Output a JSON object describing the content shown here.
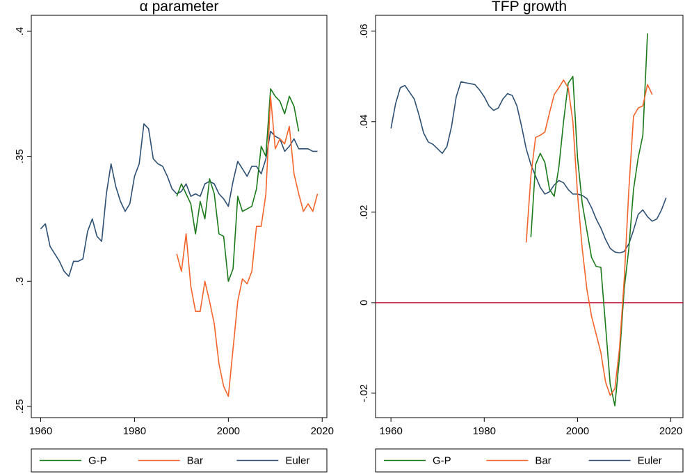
{
  "chart_data": [
    {
      "type": "line",
      "title": "α parameter",
      "x": [
        1960,
        1961,
        1962,
        1963,
        1964,
        1965,
        1966,
        1967,
        1968,
        1969,
        1970,
        1971,
        1972,
        1973,
        1974,
        1975,
        1976,
        1977,
        1978,
        1979,
        1980,
        1981,
        1982,
        1983,
        1984,
        1985,
        1986,
        1987,
        1988,
        1989,
        1990,
        1991,
        1992,
        1993,
        1994,
        1995,
        1996,
        1997,
        1998,
        1999,
        2000,
        2001,
        2002,
        2003,
        2004,
        2005,
        2006,
        2007,
        2008,
        2009,
        2010,
        2011,
        2012,
        2013,
        2014,
        2015,
        2016,
        2017,
        2018,
        2019
      ],
      "xlim": [
        1958,
        2021
      ],
      "xticks": [
        1960,
        1980,
        2000,
        2020
      ],
      "ylim": [
        0.2455,
        0.4064
      ],
      "yticks": [
        {
          "value": 0.25,
          "label": ".25"
        },
        {
          "value": 0.3,
          "label": ".3"
        },
        {
          "value": 0.35,
          "label": ".35"
        },
        {
          "value": 0.4,
          "label": ".4"
        }
      ],
      "legend": "bottom",
      "series": [
        {
          "name": "G-P",
          "color": "#1a7a1a",
          "values": [
            null,
            null,
            null,
            null,
            null,
            null,
            null,
            null,
            null,
            null,
            null,
            null,
            null,
            null,
            null,
            null,
            null,
            null,
            null,
            null,
            null,
            null,
            null,
            null,
            null,
            null,
            null,
            null,
            null,
            0.334,
            0.339,
            0.335,
            0.331,
            0.319,
            0.332,
            0.325,
            0.341,
            0.335,
            0.319,
            0.318,
            0.3,
            0.305,
            0.334,
            0.328,
            0.329,
            0.33,
            0.337,
            0.354,
            0.35,
            0.377,
            0.374,
            0.372,
            0.367,
            0.374,
            0.37,
            0.36,
            null,
            null,
            null,
            null
          ]
        },
        {
          "name": "Bar",
          "color": "#f4632a",
          "values": [
            null,
            null,
            null,
            null,
            null,
            null,
            null,
            null,
            null,
            null,
            null,
            null,
            null,
            null,
            null,
            null,
            null,
            null,
            null,
            null,
            null,
            null,
            null,
            null,
            null,
            null,
            null,
            null,
            null,
            0.311,
            0.304,
            0.319,
            0.298,
            0.288,
            0.288,
            0.3,
            0.292,
            0.283,
            0.267,
            0.258,
            0.254,
            0.273,
            0.292,
            0.301,
            0.299,
            0.304,
            0.322,
            0.322,
            0.335,
            0.374,
            0.353,
            0.357,
            0.355,
            0.362,
            0.343,
            0.335,
            0.328,
            0.331,
            0.328,
            0.335
          ]
        },
        {
          "name": "Euler",
          "color": "#2c4f73",
          "values": [
            0.321,
            0.323,
            0.314,
            0.311,
            0.308,
            0.304,
            0.302,
            0.308,
            0.308,
            0.309,
            0.32,
            0.325,
            0.318,
            0.316,
            0.335,
            0.347,
            0.338,
            0.332,
            0.328,
            0.331,
            0.342,
            0.347,
            0.363,
            0.361,
            0.349,
            0.347,
            0.346,
            0.342,
            0.337,
            0.335,
            0.336,
            0.339,
            0.334,
            0.335,
            0.334,
            0.339,
            0.34,
            0.339,
            0.335,
            0.333,
            0.33,
            0.34,
            0.348,
            0.345,
            0.342,
            0.346,
            0.346,
            0.343,
            0.349,
            0.36,
            0.358,
            0.357,
            0.352,
            0.354,
            0.357,
            0.353,
            0.353,
            0.353,
            0.352,
            0.352
          ]
        }
      ]
    },
    {
      "type": "line",
      "title": "TFP growth",
      "x": [
        1960,
        1961,
        1962,
        1963,
        1964,
        1965,
        1966,
        1967,
        1968,
        1969,
        1970,
        1971,
        1972,
        1973,
        1974,
        1975,
        1976,
        1977,
        1978,
        1979,
        1980,
        1981,
        1982,
        1983,
        1984,
        1985,
        1986,
        1987,
        1988,
        1989,
        1990,
        1991,
        1992,
        1993,
        1994,
        1995,
        1996,
        1997,
        1998,
        1999,
        2000,
        2001,
        2002,
        2003,
        2004,
        2005,
        2006,
        2007,
        2008,
        2009,
        2010,
        2011,
        2012,
        2013,
        2014,
        2015,
        2016,
        2017,
        2018,
        2019
      ],
      "xlim": [
        1956.7,
        2022.6
      ],
      "xticks": [
        1960,
        1980,
        2000,
        2020
      ],
      "ylim": [
        -0.0254,
        0.0635
      ],
      "yticks": [
        {
          "value": -0.02,
          "label": "-.02"
        },
        0,
        {
          "value": 0.02,
          "label": ".02"
        },
        {
          "value": 0.04,
          "label": ".04"
        },
        {
          "value": 0.06,
          "label": ".06"
        }
      ],
      "hline": 0,
      "hline_color": "#c8143c",
      "legend": "bottom",
      "series": [
        {
          "name": "G-P",
          "color": "#1a7a1a",
          "values": [
            null,
            null,
            null,
            null,
            null,
            null,
            null,
            null,
            null,
            null,
            null,
            null,
            null,
            null,
            null,
            null,
            null,
            null,
            null,
            null,
            null,
            null,
            null,
            null,
            null,
            null,
            null,
            null,
            null,
            null,
            0.0145,
            0.0305,
            0.033,
            0.031,
            0.025,
            0.0235,
            0.03,
            0.04,
            0.0485,
            0.05,
            0.032,
            0.022,
            0.016,
            0.01,
            0.008,
            0.0078,
            -0.005,
            -0.018,
            -0.0228,
            -0.012,
            0.003,
            0.012,
            0.025,
            0.032,
            0.037,
            0.0595,
            null,
            null,
            null,
            null
          ]
        },
        {
          "name": "Bar",
          "color": "#f4632a",
          "values": [
            null,
            null,
            null,
            null,
            null,
            null,
            null,
            null,
            null,
            null,
            null,
            null,
            null,
            null,
            null,
            null,
            null,
            null,
            null,
            null,
            null,
            null,
            null,
            null,
            null,
            null,
            null,
            null,
            null,
            0.0133,
            0.028,
            0.0365,
            0.037,
            0.0377,
            0.042,
            0.046,
            0.0475,
            0.0492,
            0.0475,
            0.04,
            0.024,
            0.012,
            0.003,
            -0.003,
            -0.007,
            -0.011,
            -0.0175,
            -0.0205,
            -0.019,
            -0.01,
            0.005,
            0.025,
            0.0412,
            0.043,
            0.0435,
            0.0482,
            0.046,
            null,
            null,
            null
          ]
        },
        {
          "name": "Euler",
          "color": "#2c4f73",
          "values": [
            0.0385,
            0.044,
            0.0475,
            0.048,
            0.0465,
            0.045,
            0.0415,
            0.0375,
            0.0355,
            0.035,
            0.034,
            0.033,
            0.0345,
            0.039,
            0.0455,
            0.0488,
            0.0486,
            0.0484,
            0.0482,
            0.047,
            0.0455,
            0.0435,
            0.0425,
            0.043,
            0.045,
            0.0462,
            0.0458,
            0.0435,
            0.039,
            0.034,
            0.0305,
            0.028,
            0.0255,
            0.024,
            0.0245,
            0.026,
            0.027,
            0.0265,
            0.025,
            0.024,
            0.024,
            0.0237,
            0.023,
            0.021,
            0.0185,
            0.0165,
            0.014,
            0.012,
            0.0112,
            0.011,
            0.0113,
            0.013,
            0.016,
            0.0195,
            0.0205,
            0.019,
            0.018,
            0.0185,
            0.0205,
            0.0232
          ]
        }
      ]
    }
  ]
}
